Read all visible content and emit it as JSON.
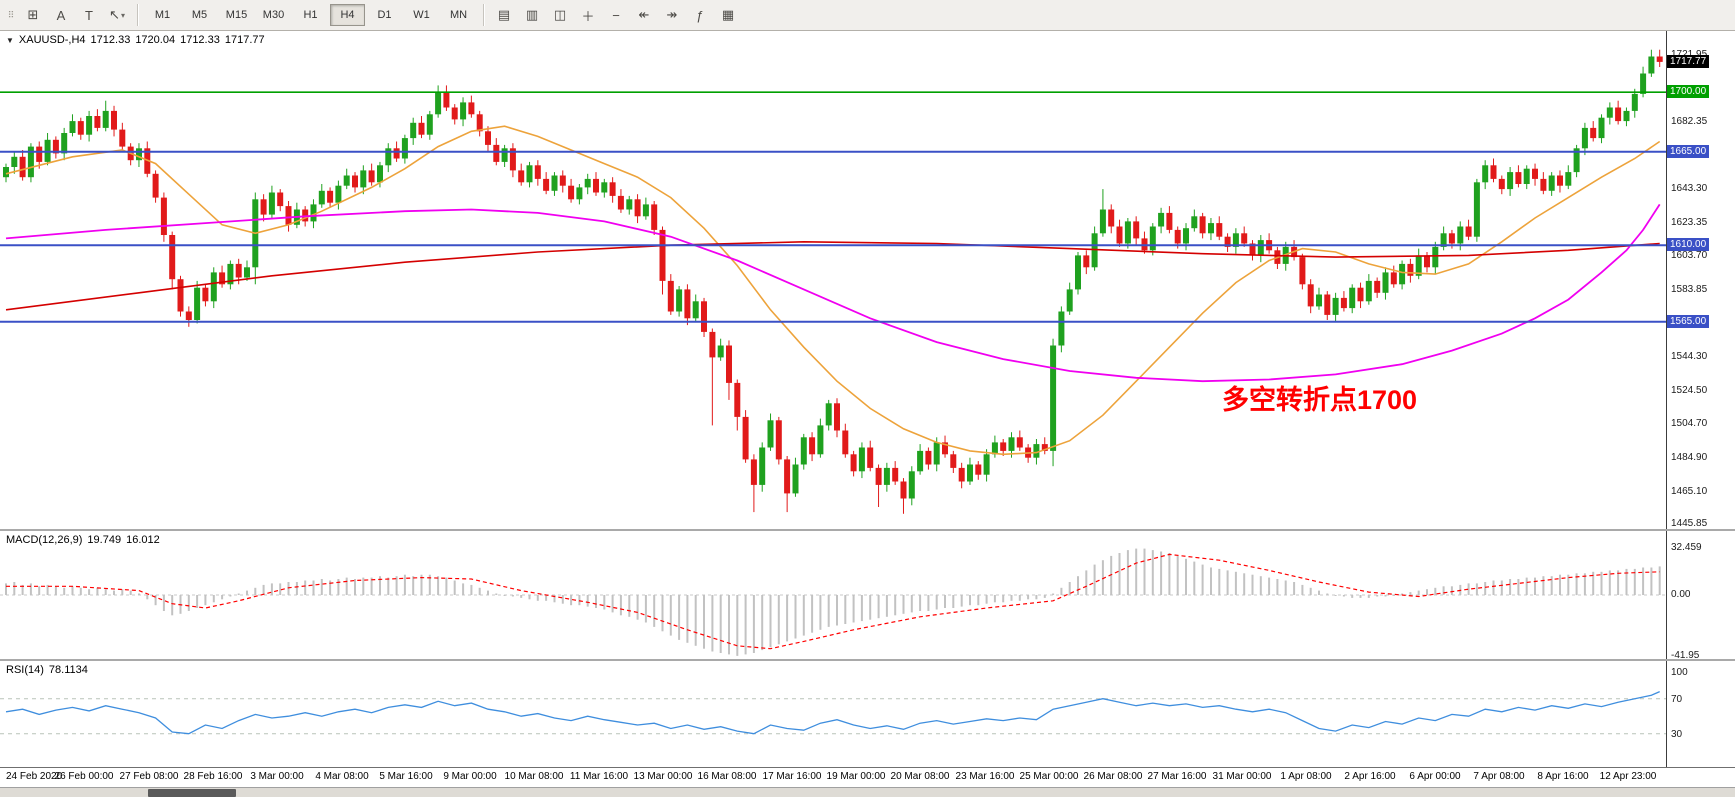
{
  "toolbar": {
    "handle_glyph": "⠿",
    "left_icons": [
      {
        "name": "grid-tool-icon",
        "glyph": "⊞"
      },
      {
        "name": "text-label-tool-icon",
        "glyph": "A"
      },
      {
        "name": "text-tool-icon",
        "glyph": "T"
      },
      {
        "name": "draw-tools-icon",
        "glyph": "↖",
        "has_dropdown": true
      }
    ],
    "timeframes": [
      {
        "label": "M1"
      },
      {
        "label": "M5"
      },
      {
        "label": "M15"
      },
      {
        "label": "M30"
      },
      {
        "label": "H1"
      },
      {
        "label": "H4",
        "active": true
      },
      {
        "label": "D1"
      },
      {
        "label": "W1"
      },
      {
        "label": "MN"
      }
    ],
    "right_icons": [
      {
        "name": "bar-chart-icon",
        "glyph": "▤"
      },
      {
        "name": "candlestick-chart-icon",
        "glyph": "▥"
      },
      {
        "name": "line-chart-icon",
        "glyph": "◫"
      },
      {
        "name": "zoom-in-icon",
        "glyph": "＋"
      },
      {
        "name": "zoom-out-icon",
        "glyph": "−"
      },
      {
        "name": "auto-scroll-icon",
        "glyph": "↞"
      },
      {
        "name": "chart-shift-icon",
        "glyph": "↠"
      },
      {
        "name": "indicators-icon",
        "glyph": "ƒ"
      },
      {
        "name": "templates-icon",
        "glyph": "▦"
      }
    ]
  },
  "colors": {
    "up": "#1fa11f",
    "down": "#e11a1a",
    "ma_fast": "#eda33b",
    "ma_mid": "#d40000",
    "ma_slow": "#f000f0",
    "macd_hist": "#c2c2c2",
    "macd_signal": "#ff0000",
    "rsi": "#3f8ede",
    "level_green": "#00a000",
    "level_blue": "#3a50c6",
    "current_box": "#000000",
    "annotation": "#ff0000"
  },
  "chart_data": {
    "type": "candlestick",
    "title": {
      "arrow_glyph": "▼",
      "symbol_period": "XAUUSD-,H4",
      "open": "1712.33",
      "high": "1720.04",
      "low": "1712.33",
      "close": "1717.77"
    },
    "candles": {
      "first_open": 1650,
      "closes": [
        1656,
        1662,
        1650,
        1668,
        1659,
        1672,
        1664,
        1676,
        1683,
        1675,
        1686,
        1679,
        1689,
        1678,
        1668,
        1660,
        1667,
        1652,
        1638,
        1616,
        1590,
        1571,
        1566,
        1585,
        1577,
        1594,
        1587,
        1599,
        1591,
        1597,
        1637,
        1628,
        1641,
        1633,
        1622,
        1631,
        1624,
        1634,
        1642,
        1635,
        1645,
        1651,
        1644,
        1654,
        1647,
        1657,
        1667,
        1661,
        1673,
        1682,
        1675,
        1687,
        1700,
        1691,
        1684,
        1694,
        1687,
        1677,
        1669,
        1659,
        1667,
        1654,
        1647,
        1657,
        1649,
        1642,
        1651,
        1645,
        1637,
        1644,
        1649,
        1641,
        1647,
        1639,
        1631,
        1637,
        1627,
        1634,
        1619,
        1589,
        1571,
        1584,
        1567,
        1577,
        1559,
        1544,
        1551,
        1529,
        1509,
        1484,
        1469,
        1491,
        1507,
        1484,
        1464,
        1481,
        1497,
        1487,
        1504,
        1517,
        1501,
        1487,
        1477,
        1491,
        1479,
        1469,
        1479,
        1471,
        1461,
        1477,
        1489,
        1481,
        1494,
        1487,
        1479,
        1471,
        1481,
        1475,
        1487,
        1494,
        1489,
        1497,
        1491,
        1485,
        1493,
        1489,
        1551,
        1571,
        1584,
        1604,
        1597,
        1617,
        1631,
        1621,
        1611,
        1624,
        1614,
        1607,
        1621,
        1629,
        1619,
        1611,
        1620,
        1627,
        1617,
        1623,
        1615,
        1609,
        1617,
        1611,
        1604,
        1613,
        1607,
        1599,
        1609,
        1603,
        1587,
        1574,
        1581,
        1569,
        1579,
        1573,
        1585,
        1577,
        1589,
        1582,
        1594,
        1587,
        1599,
        1592,
        1604,
        1597,
        1609,
        1617,
        1611,
        1621,
        1615,
        1647,
        1657,
        1649,
        1643,
        1653,
        1646,
        1655,
        1649,
        1642,
        1651,
        1645,
        1653,
        1667,
        1679,
        1673,
        1685,
        1691,
        1683,
        1689,
        1699,
        1711,
        1721,
        1717.8
      ],
      "wicks": {
        "12": [
          6,
          2
        ],
        "20": [
          2,
          6
        ],
        "30": [
          4,
          10
        ],
        "52": [
          4,
          2
        ],
        "79": [
          2,
          8
        ],
        "85": [
          2,
          40
        ],
        "87": [
          3,
          10
        ],
        "88": [
          2,
          8
        ],
        "90": [
          3,
          16
        ],
        "94": [
          2,
          11
        ],
        "105": [
          2,
          13
        ],
        "108": [
          2,
          9
        ],
        "126": [
          4,
          9
        ],
        "132": [
          12,
          2
        ],
        "198": [
          4,
          2
        ],
        "199": [
          4,
          3
        ]
      }
    },
    "moving_averages": {
      "fast": [
        [
          0,
          1652
        ],
        [
          8,
          1662
        ],
        [
          14,
          1666
        ],
        [
          18,
          1658
        ],
        [
          22,
          1640
        ],
        [
          26,
          1622
        ],
        [
          30,
          1617
        ],
        [
          34,
          1622
        ],
        [
          38,
          1630
        ],
        [
          44,
          1644
        ],
        [
          48,
          1655
        ],
        [
          52,
          1668
        ],
        [
          56,
          1677
        ],
        [
          60,
          1680
        ],
        [
          64,
          1674
        ],
        [
          68,
          1666
        ],
        [
          72,
          1658
        ],
        [
          76,
          1650
        ],
        [
          80,
          1638
        ],
        [
          84,
          1620
        ],
        [
          88,
          1598
        ],
        [
          92,
          1572
        ],
        [
          96,
          1550
        ],
        [
          100,
          1530
        ],
        [
          104,
          1514
        ],
        [
          108,
          1502
        ],
        [
          112,
          1494
        ],
        [
          116,
          1489
        ],
        [
          120,
          1487
        ],
        [
          124,
          1488
        ],
        [
          128,
          1495
        ],
        [
          132,
          1510
        ],
        [
          136,
          1530
        ],
        [
          140,
          1550
        ],
        [
          144,
          1570
        ],
        [
          148,
          1588
        ],
        [
          152,
          1601
        ],
        [
          156,
          1608
        ],
        [
          160,
          1606
        ],
        [
          164,
          1599
        ],
        [
          168,
          1594
        ],
        [
          172,
          1593
        ],
        [
          176,
          1599
        ],
        [
          180,
          1612
        ],
        [
          184,
          1626
        ],
        [
          188,
          1638
        ],
        [
          192,
          1650
        ],
        [
          196,
          1661
        ],
        [
          199,
          1671
        ]
      ],
      "mid": [
        [
          0,
          1572
        ],
        [
          16,
          1582
        ],
        [
          32,
          1592
        ],
        [
          48,
          1600
        ],
        [
          64,
          1606
        ],
        [
          80,
          1610
        ],
        [
          96,
          1612
        ],
        [
          112,
          1611
        ],
        [
          128,
          1608
        ],
        [
          144,
          1605
        ],
        [
          160,
          1603
        ],
        [
          176,
          1604
        ],
        [
          188,
          1607
        ],
        [
          199,
          1611
        ]
      ],
      "slow": [
        [
          0,
          1614
        ],
        [
          12,
          1619
        ],
        [
          24,
          1623
        ],
        [
          36,
          1627
        ],
        [
          48,
          1630
        ],
        [
          56,
          1631
        ],
        [
          64,
          1629
        ],
        [
          72,
          1624
        ],
        [
          80,
          1615
        ],
        [
          88,
          1601
        ],
        [
          96,
          1584
        ],
        [
          104,
          1567
        ],
        [
          112,
          1553
        ],
        [
          120,
          1543
        ],
        [
          128,
          1536
        ],
        [
          136,
          1532
        ],
        [
          144,
          1530
        ],
        [
          152,
          1531
        ],
        [
          160,
          1534
        ],
        [
          168,
          1540
        ],
        [
          174,
          1548
        ],
        [
          180,
          1558
        ],
        [
          184,
          1567
        ],
        [
          188,
          1578
        ],
        [
          192,
          1594
        ],
        [
          195,
          1607
        ],
        [
          197,
          1619
        ],
        [
          199,
          1634
        ]
      ]
    },
    "levels": [
      {
        "price": 1700,
        "label": "1700.00",
        "color": "green"
      },
      {
        "price": 1665,
        "label": "1665.00",
        "color": "blue"
      },
      {
        "price": 1610,
        "label": "1610.00",
        "color": "blue"
      },
      {
        "price": 1565,
        "label": "1565.00",
        "color": "blue"
      }
    ],
    "price_axis": {
      "current": {
        "price": 1717.77,
        "label": "1717.77"
      },
      "ticks": [
        {
          "price": 1721.95,
          "label": "1721.95"
        },
        {
          "price": 1682.35,
          "label": "1682.35"
        },
        {
          "price": 1643.3,
          "label": "1643.30"
        },
        {
          "price": 1623.35,
          "label": "1623.35"
        },
        {
          "price": 1603.7,
          "label": "1603.70"
        },
        {
          "price": 1583.85,
          "label": "1583.85"
        },
        {
          "price": 1544.3,
          "label": "1544.30"
        },
        {
          "price": 1524.5,
          "label": "1524.50"
        },
        {
          "price": 1504.7,
          "label": "1504.70"
        },
        {
          "price": 1484.9,
          "label": "1484.90"
        },
        {
          "price": 1465.1,
          "label": "1465.10"
        },
        {
          "price": 1445.85,
          "label": "1445.85"
        }
      ]
    },
    "macd": {
      "label": "MACD(12,26,9)",
      "main_value": "19.749",
      "signal_value": "16.012",
      "axis": [
        {
          "v": 32.459,
          "label": "32.459"
        },
        {
          "v": 0,
          "label": "0.00"
        },
        {
          "v": -41.95,
          "label": "-41.95"
        }
      ],
      "histogram": [
        8,
        9,
        7,
        8,
        6,
        7,
        6,
        5,
        6,
        5,
        4,
        5,
        4,
        3,
        4,
        3,
        1,
        -3,
        -7,
        -11,
        -14,
        -13,
        -11,
        -9,
        -7,
        -5,
        -3,
        -1,
        1,
        3,
        5,
        7,
        8,
        8,
        9,
        9,
        10,
        10,
        11,
        10,
        11,
        12,
        11,
        12,
        12,
        13,
        12,
        13,
        14,
        13,
        14,
        14,
        13,
        12,
        10,
        8,
        7,
        5,
        3,
        1,
        0,
        -1,
        -2,
        -3,
        -4,
        -4,
        -5,
        -6,
        -7,
        -7,
        -8,
        -9,
        -10,
        -12,
        -14,
        -15,
        -17,
        -19,
        -22,
        -25,
        -28,
        -31,
        -33,
        -35,
        -37,
        -39,
        -40,
        -41,
        -42,
        -41,
        -40,
        -38,
        -36,
        -34,
        -32,
        -30,
        -28,
        -26,
        -24,
        -22,
        -21,
        -20,
        -19,
        -18,
        -17,
        -16,
        -15,
        -14,
        -13,
        -12,
        -11,
        -11,
        -10,
        -9,
        -9,
        -8,
        -7,
        -7,
        -6,
        -5,
        -5,
        -4,
        -4,
        -3,
        -3,
        -2,
        1,
        5,
        9,
        13,
        17,
        21,
        24,
        27,
        29,
        31,
        32,
        32,
        31,
        30,
        29,
        27,
        25,
        23,
        21,
        19,
        18,
        17,
        16,
        15,
        14,
        13,
        12,
        11,
        10,
        9,
        7,
        5,
        3,
        1,
        0,
        -1,
        -2,
        -2,
        -2,
        -1,
        -1,
        0,
        1,
        2,
        3,
        4,
        5,
        6,
        6,
        7,
        8,
        8,
        9,
        10,
        10,
        11,
        11,
        12,
        12,
        13,
        13,
        14,
        14,
        15,
        15,
        16,
        16,
        17,
        17,
        18,
        18,
        19,
        19,
        19.7
      ],
      "signal_points": [
        [
          0,
          6
        ],
        [
          8,
          6
        ],
        [
          16,
          3
        ],
        [
          20,
          -6
        ],
        [
          24,
          -9
        ],
        [
          28,
          -4
        ],
        [
          34,
          5
        ],
        [
          42,
          10
        ],
        [
          50,
          12
        ],
        [
          56,
          11
        ],
        [
          62,
          3
        ],
        [
          70,
          -5
        ],
        [
          76,
          -12
        ],
        [
          82,
          -24
        ],
        [
          88,
          -35
        ],
        [
          92,
          -37
        ],
        [
          96,
          -32
        ],
        [
          102,
          -24
        ],
        [
          110,
          -15
        ],
        [
          118,
          -9
        ],
        [
          126,
          -4
        ],
        [
          130,
          6
        ],
        [
          136,
          22
        ],
        [
          140,
          28
        ],
        [
          146,
          24
        ],
        [
          152,
          17
        ],
        [
          158,
          9
        ],
        [
          164,
          2
        ],
        [
          170,
          -1
        ],
        [
          176,
          4
        ],
        [
          182,
          8
        ],
        [
          188,
          12
        ],
        [
          194,
          15
        ],
        [
          199,
          16
        ]
      ]
    },
    "rsi": {
      "label": "RSI(14)",
      "value": "78.1134",
      "axis": [
        {
          "v": 100,
          "label": "100"
        },
        {
          "v": 70,
          "label": "70"
        },
        {
          "v": 30,
          "label": "30"
        }
      ],
      "level_lines": [
        70,
        30
      ],
      "step": 2,
      "last": 78.11,
      "values": [
        55,
        58,
        52,
        57,
        60,
        56,
        62,
        58,
        54,
        48,
        32,
        30,
        40,
        36,
        45,
        52,
        48,
        50,
        54,
        50,
        55,
        58,
        54,
        60,
        63,
        60,
        67,
        62,
        65,
        58,
        55,
        50,
        53,
        48,
        45,
        50,
        46,
        43,
        40,
        42,
        36,
        40,
        35,
        38,
        33,
        30,
        40,
        36,
        34,
        42,
        46,
        40,
        36,
        39,
        35,
        42,
        45,
        41,
        44,
        47,
        45,
        48,
        46,
        58,
        62,
        66,
        70,
        66,
        62,
        65,
        62,
        64,
        60,
        62,
        58,
        55,
        58,
        54,
        45,
        36,
        33,
        40,
        37,
        44,
        41,
        48,
        45,
        52,
        50,
        58,
        55,
        60,
        57,
        62,
        59,
        64,
        61,
        66,
        70,
        74
      ]
    },
    "time_axis": [
      "24 Feb 2020",
      "26 Feb 00:00",
      "27 Feb 08:00",
      "28 Feb 16:00",
      "3 Mar 00:00",
      "4 Mar 08:00",
      "5 Mar 16:00",
      "9 Mar 00:00",
      "10 Mar 08:00",
      "11 Mar 16:00",
      "13 Mar 00:00",
      "16 Mar 08:00",
      "17 Mar 16:00",
      "19 Mar 00:00",
      "20 Mar 08:00",
      "23 Mar 16:00",
      "25 Mar 00:00",
      "26 Mar 08:00",
      "27 Mar 16:00",
      "31 Mar 00:00",
      "1 Apr 08:00",
      "2 Apr 16:00",
      "6 Apr 00:00",
      "7 Apr 08:00",
      "8 Apr 16:00",
      "12 Apr 23:00"
    ],
    "annotation": {
      "text": "多空转折点1700"
    }
  }
}
